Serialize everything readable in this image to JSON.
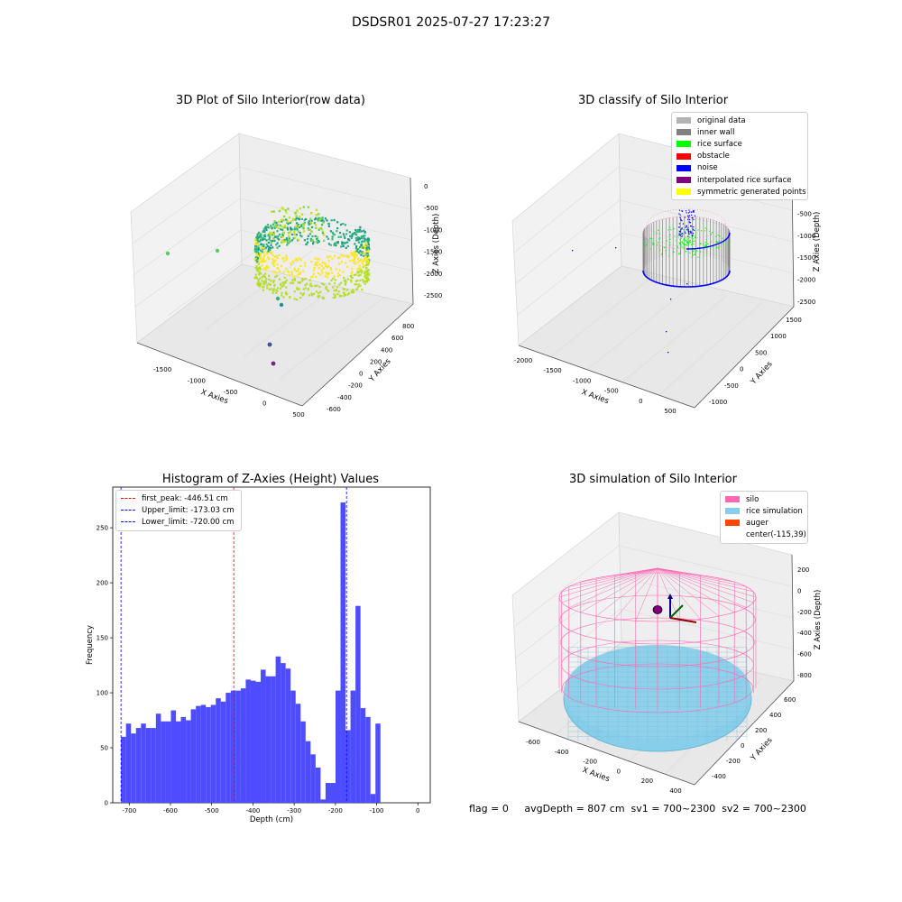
{
  "suptitle": "DSDSR01 2025-07-27 17:23:27",
  "status_line": "flag = 0     avgDepth = 807 cm  sv1 = 700~2300  sv2 = 700~2300",
  "chart_data": [
    {
      "type": "scatter",
      "title": "3D Plot of Silo Interior(row data)",
      "xlabel": "X Axies",
      "ylabel": "Y Axies",
      "zlabel": "Z Axies (Depth)",
      "x_ticks": [
        "-1500",
        "-1000",
        "-500",
        "0",
        "500"
      ],
      "y_ticks": [
        "-600",
        "-400",
        "-200",
        "0",
        "200",
        "400",
        "600",
        "800"
      ],
      "z_ticks": [
        "0",
        "-500",
        "-1000",
        "-1500",
        "-2000",
        "-2500"
      ],
      "colormap": "viridis"
    },
    {
      "type": "scatter",
      "title": "3D classify of Silo Interior",
      "xlabel": "X Axies",
      "ylabel": "Y Axies",
      "zlabel": "Z Axies (Depth)",
      "x_ticks": [
        "-2000",
        "-1500",
        "-1000",
        "-500",
        "0",
        "500"
      ],
      "y_ticks": [
        "-1000",
        "-500",
        "0",
        "500",
        "1000",
        "1500"
      ],
      "z_ticks": [
        "0",
        "-500",
        "-1000",
        "-1500",
        "-2000",
        "-2500"
      ],
      "legend": [
        {
          "label": "original data",
          "color": "#b3b3b3"
        },
        {
          "label": "inner wall",
          "color": "#808080"
        },
        {
          "label": "rice surface",
          "color": "#00ff00"
        },
        {
          "label": "obstacle",
          "color": "#ff0000"
        },
        {
          "label": "noise",
          "color": "#0000ff"
        },
        {
          "label": "interpolated rice surface",
          "color": "#800080"
        },
        {
          "label": "symmetric generated points",
          "color": "#ffff00"
        }
      ]
    },
    {
      "type": "bar",
      "title": "Histogram of Z-Axies (Height) Values",
      "xlabel": "Depth (cm)",
      "ylabel": "Frequency",
      "xlim": [
        -740,
        30
      ],
      "ylim": [
        0,
        287
      ],
      "x_ticks": [
        -700,
        -600,
        -500,
        -400,
        -300,
        -200,
        -100,
        0
      ],
      "y_ticks": [
        0,
        50,
        100,
        150,
        200,
        250
      ],
      "bar_color": "#4d4dff",
      "bin_start": -720,
      "bin_width": 12.1,
      "values": [
        60,
        72,
        63,
        68,
        72,
        68,
        68,
        81,
        74,
        74,
        84,
        74,
        78,
        75,
        85,
        88,
        89,
        87,
        89,
        95,
        92,
        100,
        102,
        102,
        104,
        112,
        111,
        110,
        121,
        115,
        115,
        133,
        127,
        122,
        102,
        90,
        74,
        56,
        44,
        32,
        3,
        18,
        18,
        102,
        273,
        66,
        102,
        179,
        86,
        78,
        8,
        72
      ],
      "vlines": [
        {
          "label": "first_peak: -446.51 cm",
          "x": -446.51,
          "color": "#ff0000"
        },
        {
          "label": "Upper_limit: -173.03 cm",
          "x": -173.03,
          "color": "#0000ff"
        },
        {
          "label": "Lower_limit: -720.00 cm",
          "x": -720.0,
          "color": "#0000ff"
        }
      ]
    },
    {
      "type": "scatter",
      "title": "3D simulation of Silo Interior",
      "xlabel": "X Axies",
      "ylabel": "Y Axies",
      "zlabel": "Z Axies (Depth)",
      "x_ticks": [
        "-600",
        "-400",
        "-200",
        "0",
        "200",
        "400"
      ],
      "y_ticks": [
        "-400",
        "-200",
        "0",
        "200",
        "400",
        "600"
      ],
      "z_ticks": [
        "200",
        "0",
        "-200",
        "-400",
        "-600",
        "-800"
      ],
      "legend": [
        {
          "label": "silo",
          "color": "#ff69b4"
        },
        {
          "label": "rice simulation",
          "color": "#87ceeb"
        },
        {
          "label": "auger",
          "color": "#ff4500"
        },
        {
          "label": "center(-115,39)",
          "color": ""
        }
      ]
    }
  ]
}
